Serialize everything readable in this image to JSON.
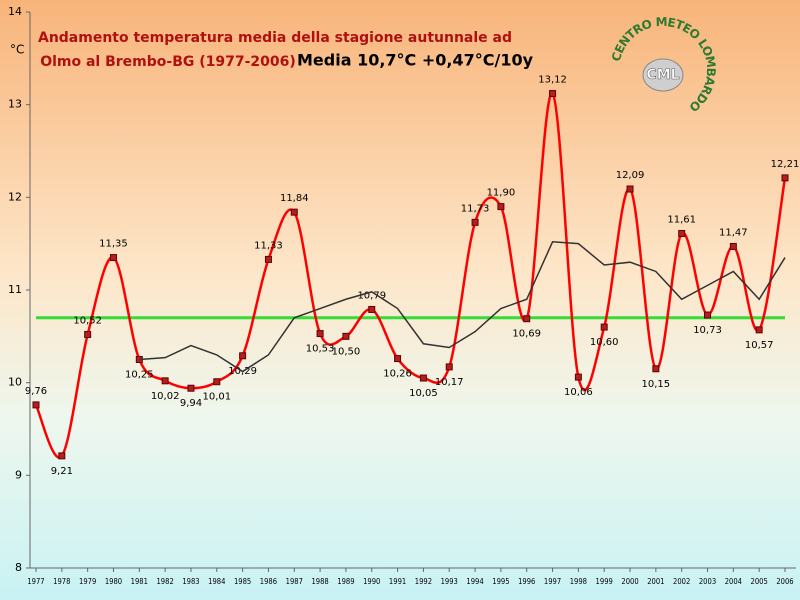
{
  "chart_data": {
    "type": "line",
    "title": [
      "Andamento temperatura media della stagione autunnale ad",
      "Olmo al Brembo-BG (1977-2006)"
    ],
    "subtitle": "Media 10,7°C +0,47°C/10y",
    "y_label": "°C",
    "logo": {
      "ring": "CENTRO METEO LOMBARDO",
      "abbr": "CML"
    },
    "categories": [
      "1977",
      "1978",
      "1979",
      "1980",
      "1981",
      "1982",
      "1983",
      "1984",
      "1985",
      "1986",
      "1987",
      "1988",
      "1989",
      "1990",
      "1991",
      "1992",
      "1993",
      "1994",
      "1995",
      "1996",
      "1997",
      "1998",
      "1999",
      "2000",
      "2001",
      "2002",
      "2003",
      "2004",
      "2005",
      "2006"
    ],
    "series": [
      {
        "color": "#ff0000",
        "smooth": true,
        "markers": true,
        "values": [
          9.76,
          9.21,
          10.52,
          11.35,
          10.25,
          10.02,
          9.94,
          10.01,
          10.29,
          11.33,
          11.84,
          10.53,
          10.5,
          10.79,
          10.26,
          10.05,
          10.17,
          11.73,
          11.9,
          10.69,
          13.12,
          10.06,
          10.6,
          12.09,
          10.15,
          11.61,
          10.73,
          11.47,
          10.57,
          12.21
        ],
        "value_labels": [
          "9,76",
          "9,21",
          "10,52",
          "11,35",
          "10,25",
          "10,02",
          "9,94",
          "10,01",
          "10,29",
          "11,33",
          "11,84",
          "10,53",
          "10,50",
          "10,79",
          "10,26",
          "10,05",
          "10,17",
          "11,73",
          "11,90",
          "10,69",
          "13,12",
          "10,06",
          "10,60",
          "12,09",
          "10,15",
          "11,61",
          "10,73",
          "11,47",
          "10,57",
          "12,21"
        ]
      },
      {
        "color": "#333333",
        "smooth": false,
        "markers": false,
        "values": [
          null,
          null,
          null,
          null,
          10.25,
          10.27,
          10.4,
          10.3,
          10.12,
          10.3,
          10.7,
          10.8,
          10.9,
          10.98,
          10.8,
          10.42,
          10.38,
          10.55,
          10.8,
          10.9,
          11.52,
          11.5,
          11.27,
          11.3,
          11.2,
          10.9,
          11.05,
          11.2,
          10.9,
          11.35
        ]
      }
    ],
    "mean_line": {
      "value": 10.7,
      "color": "#33dd33"
    },
    "ylim": [
      8,
      14
    ],
    "yticks": [
      8,
      9,
      10,
      11,
      12,
      13,
      14
    ]
  }
}
